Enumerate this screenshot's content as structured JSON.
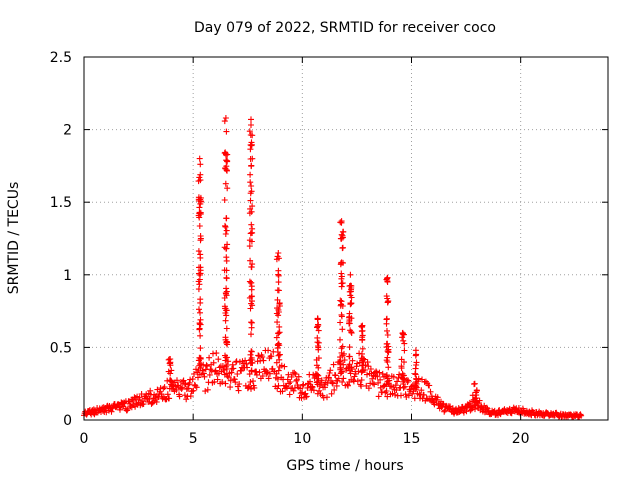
{
  "chart_data": {
    "type": "scatter",
    "title": "Day 079 of 2022, SRMTID for receiver coco",
    "xlabel": "GPS time / hours",
    "ylabel": "SRMTID / TECUs",
    "xlim": [
      0,
      24
    ],
    "ylim": [
      0,
      2.5
    ],
    "x_ticks": [
      0,
      5,
      10,
      15,
      20
    ],
    "x_tick_labels": [
      "0",
      "5",
      "10",
      "15",
      "20"
    ],
    "y_ticks": [
      0,
      0.5,
      1,
      1.5,
      2,
      2.5
    ],
    "y_tick_labels": [
      "0",
      "0.5",
      "1",
      "1.5",
      "2",
      "2.5"
    ],
    "grid": true,
    "marker": "+",
    "color": "#ff0000",
    "baseline": [
      [
        0.0,
        0.05
      ],
      [
        0.5,
        0.06
      ],
      [
        1.0,
        0.07
      ],
      [
        1.5,
        0.09
      ],
      [
        2.0,
        0.1
      ],
      [
        2.5,
        0.13
      ],
      [
        3.0,
        0.15
      ],
      [
        3.5,
        0.18
      ],
      [
        4.0,
        0.22
      ],
      [
        4.5,
        0.2
      ],
      [
        5.0,
        0.25
      ],
      [
        5.5,
        0.3
      ],
      [
        6.0,
        0.35
      ],
      [
        6.5,
        0.3
      ],
      [
        7.0,
        0.3
      ],
      [
        7.5,
        0.32
      ],
      [
        8.0,
        0.35
      ],
      [
        8.5,
        0.38
      ],
      [
        9.0,
        0.3
      ],
      [
        9.5,
        0.25
      ],
      [
        10.0,
        0.22
      ],
      [
        10.5,
        0.25
      ],
      [
        11.0,
        0.22
      ],
      [
        11.5,
        0.3
      ],
      [
        12.0,
        0.35
      ],
      [
        12.5,
        0.35
      ],
      [
        13.0,
        0.3
      ],
      [
        13.5,
        0.25
      ],
      [
        14.0,
        0.22
      ],
      [
        14.5,
        0.25
      ],
      [
        15.0,
        0.2
      ],
      [
        15.5,
        0.22
      ],
      [
        16.0,
        0.15
      ],
      [
        16.5,
        0.08
      ],
      [
        17.0,
        0.06
      ],
      [
        17.5,
        0.08
      ],
      [
        18.0,
        0.12
      ],
      [
        18.5,
        0.06
      ],
      [
        19.0,
        0.05
      ],
      [
        19.5,
        0.06
      ],
      [
        20.0,
        0.07
      ],
      [
        20.5,
        0.05
      ],
      [
        21.0,
        0.04
      ],
      [
        21.5,
        0.04
      ],
      [
        22.0,
        0.03
      ],
      [
        22.8,
        0.03
      ]
    ],
    "spikes": [
      {
        "x": 3.95,
        "width": 0.15,
        "peak": 0.42
      },
      {
        "x": 5.3,
        "width": 0.12,
        "peak": 1.8
      },
      {
        "x": 6.5,
        "width": 0.12,
        "peak": 2.08
      },
      {
        "x": 7.65,
        "width": 0.12,
        "peak": 2.07
      },
      {
        "x": 8.9,
        "width": 0.15,
        "peak": 1.15
      },
      {
        "x": 10.7,
        "width": 0.12,
        "peak": 0.7
      },
      {
        "x": 11.8,
        "width": 0.15,
        "peak": 1.37
      },
      {
        "x": 12.2,
        "width": 0.12,
        "peak": 1.0
      },
      {
        "x": 12.75,
        "width": 0.1,
        "peak": 0.65
      },
      {
        "x": 13.9,
        "width": 0.1,
        "peak": 0.98
      },
      {
        "x": 14.6,
        "width": 0.15,
        "peak": 0.6
      },
      {
        "x": 15.2,
        "width": 0.08,
        "peak": 0.48
      },
      {
        "x": 17.9,
        "width": 0.2,
        "peak": 0.25
      }
    ]
  }
}
